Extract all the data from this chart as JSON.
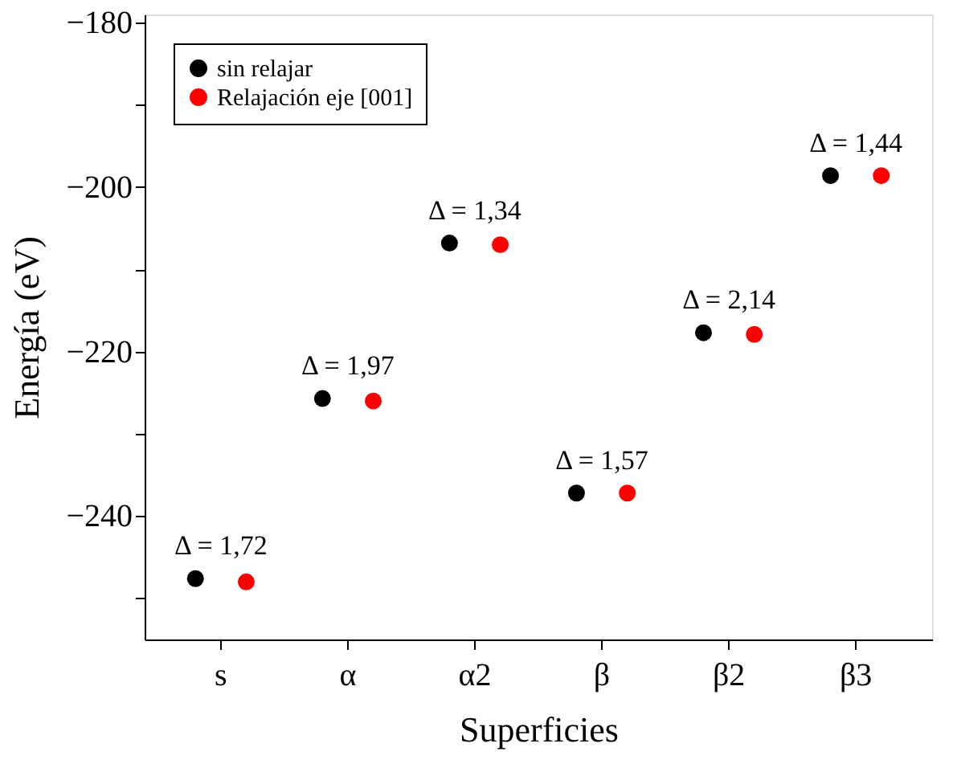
{
  "chart_data": {
    "type": "scatter",
    "xlabel": "Superficies",
    "ylabel": "Energía (eV)",
    "categories": [
      "s",
      "α",
      "α2",
      "β",
      "β2",
      "β3"
    ],
    "series": [
      {
        "name": "sin relajar",
        "color": "#000000",
        "values": [
          -247.6,
          -225.7,
          -206.8,
          -237.2,
          -217.7,
          -198.6
        ]
      },
      {
        "name": "Relajación eje [001]",
        "color": "#ff0000",
        "values": [
          -248.0,
          -226.0,
          -207.0,
          -237.2,
          -217.9,
          -198.6
        ]
      }
    ],
    "ylim": [
      -255,
      -179
    ],
    "yticks": [
      {
        "value": -180,
        "label": "−180"
      },
      {
        "value": -190,
        "label": null
      },
      {
        "value": -200,
        "label": "−200"
      },
      {
        "value": -210,
        "label": null
      },
      {
        "value": -220,
        "label": "−220"
      },
      {
        "value": -230,
        "label": null
      },
      {
        "value": -240,
        "label": "−240"
      },
      {
        "value": -250,
        "label": null
      }
    ],
    "annotations": [
      "Δ = 1,72",
      "Δ = 1,97",
      "Δ = 1,34",
      "Δ = 1,57",
      "Δ = 2,14",
      "Δ = 1,44"
    ],
    "marker": "circle",
    "legend": "top left",
    "grid": false
  }
}
